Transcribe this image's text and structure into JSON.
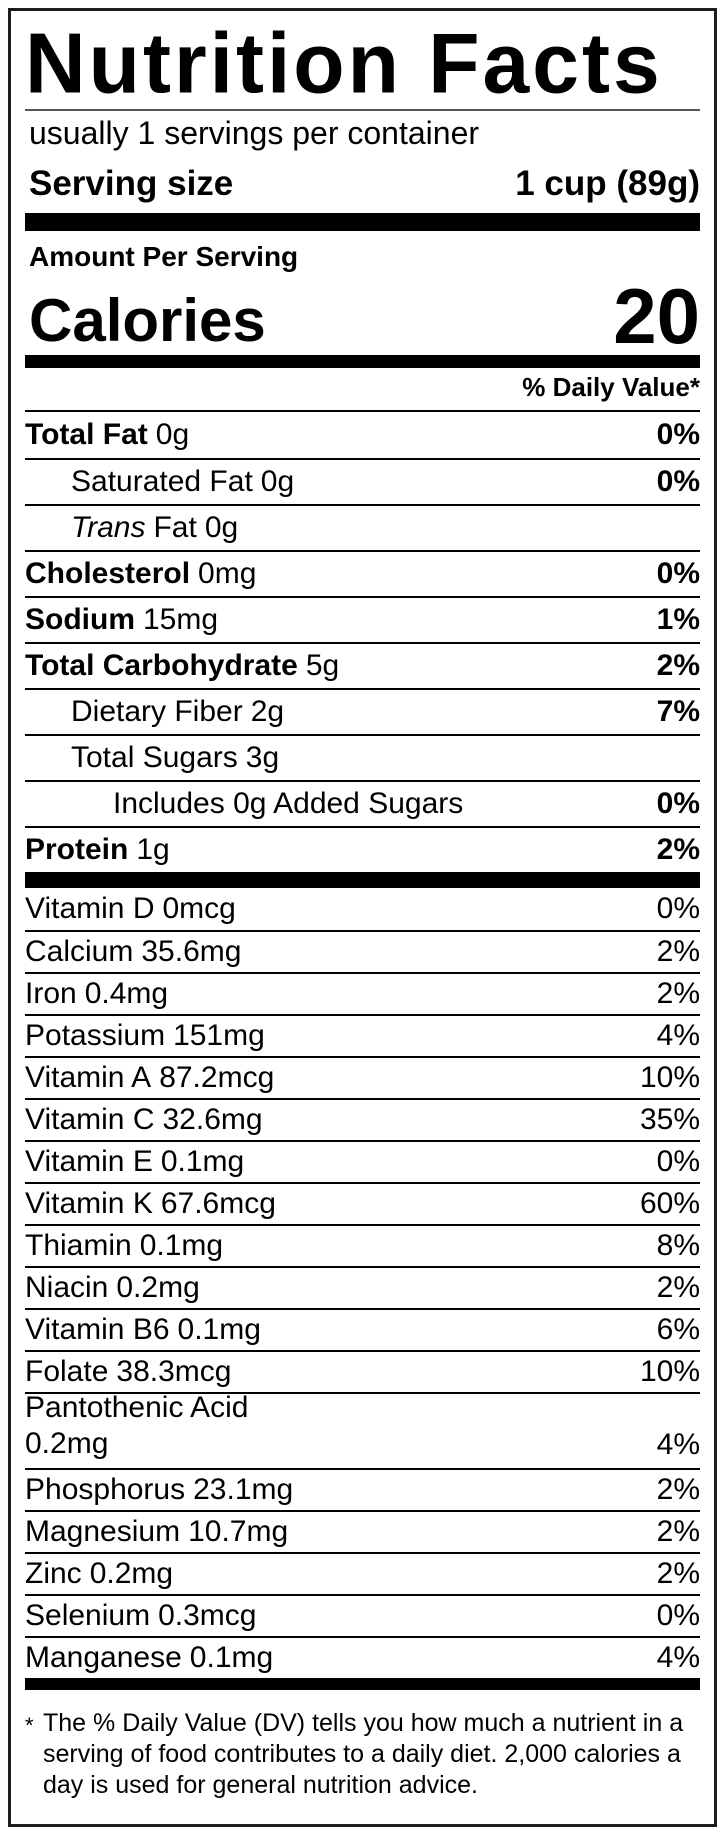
{
  "colors": {
    "text": "#000000",
    "background": "#ffffff",
    "border": "#1d1d1d",
    "bar": "#000000"
  },
  "header": {
    "title": "Nutrition Facts",
    "servings_per_container": "usually 1 servings per container",
    "serving_size_label": "Serving size",
    "serving_size_value": "1 cup (89g)"
  },
  "calories": {
    "amount_per_serving_label": "Amount Per Serving",
    "calories_label": "Calories",
    "calories_value": "20"
  },
  "daily_value_header": "% Daily Value*",
  "nutrients": [
    {
      "name": "Total Fat",
      "amount": "0g",
      "dv": "0%"
    },
    {
      "name": "Saturated Fat",
      "amount": "0g",
      "dv": "0%"
    },
    {
      "name": "Trans",
      "rest": "Fat",
      "amount": "0g",
      "dv": ""
    },
    {
      "name": "Cholesterol",
      "amount": "0mg",
      "dv": "0%"
    },
    {
      "name": "Sodium",
      "amount": "15mg",
      "dv": "1%"
    },
    {
      "name": "Total Carbohydrate",
      "amount": "5g",
      "dv": "2%"
    },
    {
      "name": "Dietary Fiber",
      "amount": "2g",
      "dv": "7%"
    },
    {
      "name": "Total Sugars",
      "amount": "3g",
      "dv": ""
    },
    {
      "name": "Includes 0g Added Sugars",
      "amount": "",
      "dv": "0%"
    },
    {
      "name": "Protein",
      "amount": "1g",
      "dv": "2%"
    }
  ],
  "vitamins": [
    {
      "name": "Vitamin D",
      "amount": "0mcg",
      "dv": "0%"
    },
    {
      "name": "Calcium",
      "amount": "35.6mg",
      "dv": "2%"
    },
    {
      "name": "Iron",
      "amount": "0.4mg",
      "dv": "2%"
    },
    {
      "name": "Potassium",
      "amount": "151mg",
      "dv": "4%"
    },
    {
      "name": "Vitamin A",
      "amount": "87.2mcg",
      "dv": "10%"
    },
    {
      "name": "Vitamin C",
      "amount": "32.6mg",
      "dv": "35%"
    },
    {
      "name": "Vitamin E",
      "amount": "0.1mg",
      "dv": "0%"
    },
    {
      "name": "Vitamin K",
      "amount": "67.6mcg",
      "dv": "60%"
    },
    {
      "name": "Thiamin",
      "amount": "0.1mg",
      "dv": "8%"
    },
    {
      "name": "Niacin",
      "amount": "0.2mg",
      "dv": "2%"
    },
    {
      "name": "Vitamin B6",
      "amount": "0.1mg",
      "dv": "6%"
    },
    {
      "name": "Folate",
      "amount": "38.3mcg",
      "dv": "10%"
    },
    {
      "name": "Pantothenic Acid",
      "amount": "0.2mg",
      "dv": "4%"
    },
    {
      "name": "Phosphorus",
      "amount": "23.1mg",
      "dv": "2%"
    },
    {
      "name": "Magnesium",
      "amount": "10.7mg",
      "dv": "2%"
    },
    {
      "name": "Zinc",
      "amount": "0.2mg",
      "dv": "2%"
    },
    {
      "name": "Selenium",
      "amount": "0.3mcg",
      "dv": "0%"
    },
    {
      "name": "Manganese",
      "amount": "0.1mg",
      "dv": "4%"
    }
  ],
  "footnote": {
    "symbol": "*",
    "text": "The % Daily Value (DV) tells you how much a nutrient in a serving of food contributes to a daily diet. 2,000 calories a day is used for general nutrition advice."
  }
}
